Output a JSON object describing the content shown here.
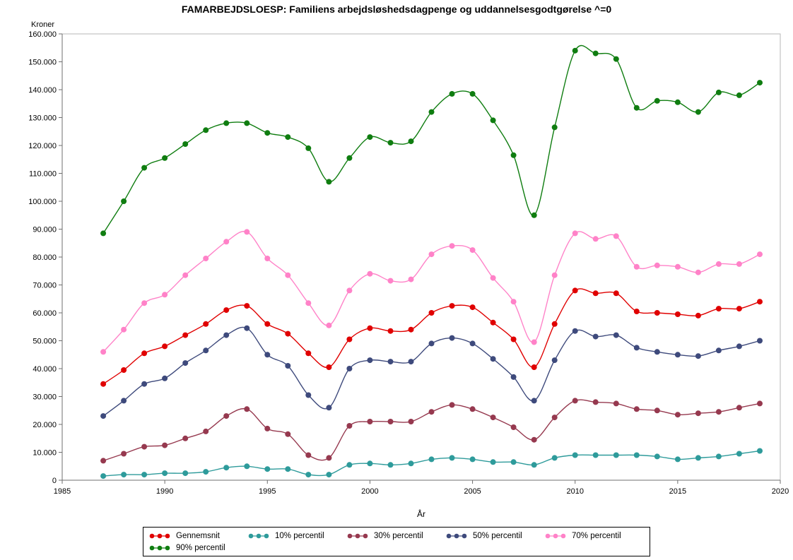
{
  "page": {
    "title": "FAMARBEJDSLOESP: Familiens arbejdsløshedsdagpenge og uddannelsesgodtgørelse ^=0"
  },
  "chart_data": {
    "type": "line",
    "title": "FAMARBEJDSLOESP: Familiens arbejdsløshedsdagpenge og uddannelsesgodtgørelse ^=0",
    "xlabel": "År",
    "ylabel": "Kroner",
    "xlim": [
      1985,
      2020
    ],
    "ylim": [
      0,
      160000
    ],
    "x_ticks": [
      1985,
      1990,
      1995,
      2000,
      2005,
      2010,
      2015,
      2020
    ],
    "y_tick_step": 10000,
    "grid": false,
    "legend_position": "bottom",
    "marker": "circle",
    "smooth": true,
    "x": [
      1987,
      1988,
      1989,
      1990,
      1991,
      1992,
      1993,
      1994,
      1995,
      1996,
      1997,
      1998,
      1999,
      2000,
      2001,
      2002,
      2003,
      2004,
      2005,
      2006,
      2007,
      2008,
      2009,
      2010,
      2011,
      2012,
      2013,
      2014,
      2015,
      2016,
      2017,
      2018,
      2019
    ],
    "series": [
      {
        "name": "Gennemsnit",
        "color": "#e00000",
        "values": [
          34500,
          39500,
          45500,
          48000,
          52000,
          56000,
          61000,
          62500,
          56000,
          52500,
          45500,
          40500,
          50500,
          54500,
          53500,
          54000,
          60000,
          62500,
          62000,
          56500,
          50500,
          40500,
          56000,
          68000,
          67000,
          67000,
          60500,
          60000,
          59500,
          59000,
          61500,
          61500,
          64000
        ]
      },
      {
        "name": "10% percentil",
        "color": "#2e9b9b",
        "values": [
          1500,
          2000,
          2000,
          2500,
          2500,
          3000,
          4500,
          5000,
          4000,
          4000,
          2000,
          2000,
          5500,
          6000,
          5500,
          6000,
          7500,
          8000,
          7500,
          6500,
          6500,
          5500,
          8000,
          9000,
          9000,
          9000,
          9000,
          8500,
          7500,
          8000,
          8500,
          9500,
          10500
        ]
      },
      {
        "name": "30% percentil",
        "color": "#96394f",
        "values": [
          7000,
          9500,
          12000,
          12500,
          15000,
          17500,
          23000,
          25500,
          18500,
          16500,
          9000,
          8000,
          19500,
          21000,
          21000,
          21000,
          24500,
          27000,
          25500,
          22500,
          19000,
          14500,
          22500,
          28500,
          28000,
          27500,
          25500,
          25000,
          23500,
          24000,
          24500,
          26000,
          27500
        ]
      },
      {
        "name": "50% percentil",
        "color": "#3e4a7c",
        "values": [
          23000,
          28500,
          34500,
          36500,
          42000,
          46500,
          52000,
          54500,
          45000,
          41000,
          30500,
          26000,
          40000,
          43000,
          42500,
          42500,
          49000,
          51000,
          49000,
          43500,
          37000,
          28500,
          43000,
          53500,
          51500,
          52000,
          47500,
          46000,
          45000,
          44500,
          46500,
          48000,
          50000
        ]
      },
      {
        "name": "70% percentil",
        "color": "#ff82c8",
        "values": [
          46000,
          54000,
          63500,
          66500,
          73500,
          79500,
          85500,
          89000,
          79500,
          73500,
          63500,
          55500,
          68000,
          74000,
          71500,
          72000,
          81000,
          84000,
          82500,
          72500,
          64000,
          49500,
          73500,
          88500,
          86500,
          87500,
          76500,
          77000,
          76500,
          74500,
          77500,
          77500,
          81000
        ]
      },
      {
        "name": "90% percentil",
        "color": "#0f7d10",
        "values": [
          88500,
          100000,
          112000,
          115500,
          120500,
          125500,
          128000,
          128000,
          124500,
          123000,
          119000,
          107000,
          115500,
          123000,
          121000,
          121500,
          132000,
          138500,
          138500,
          129000,
          116500,
          95000,
          126500,
          154000,
          153000,
          151000,
          133500,
          136000,
          135500,
          132000,
          139000,
          138000,
          142500
        ]
      }
    ]
  }
}
